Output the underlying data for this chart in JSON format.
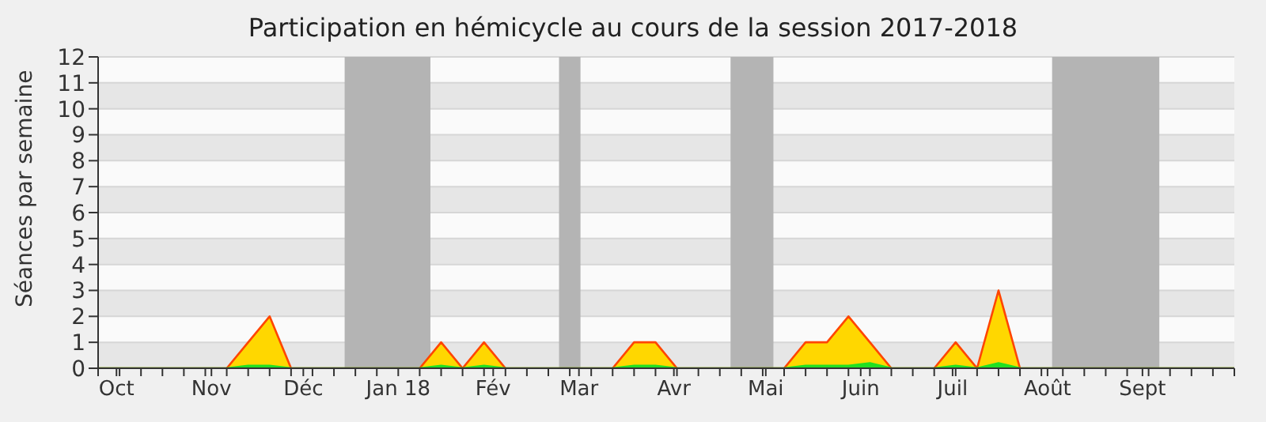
{
  "chart_data": {
    "type": "area",
    "title": "Participation en hémicycle au cours de la session 2017-2018",
    "ylabel": "Séances par semaine",
    "x": [
      "2017-09-25",
      "2017-10-02",
      "2017-10-09",
      "2017-10-16",
      "2017-10-23",
      "2017-10-30",
      "2017-11-06",
      "2017-11-13",
      "2017-11-20",
      "2017-11-27",
      "2017-12-04",
      "2017-12-11",
      "2017-12-18",
      "2017-12-25",
      "2018-01-01",
      "2018-01-08",
      "2018-01-15",
      "2018-01-22",
      "2018-01-29",
      "2018-02-05",
      "2018-02-12",
      "2018-02-19",
      "2018-02-26",
      "2018-03-05",
      "2018-03-12",
      "2018-03-19",
      "2018-03-26",
      "2018-04-02",
      "2018-04-09",
      "2018-04-16",
      "2018-04-23",
      "2018-04-30",
      "2018-05-07",
      "2018-05-14",
      "2018-05-21",
      "2018-05-28",
      "2018-06-04",
      "2018-06-11",
      "2018-06-18",
      "2018-06-25",
      "2018-07-02",
      "2018-07-09",
      "2018-07-16",
      "2018-07-23",
      "2018-07-30",
      "2018-08-06",
      "2018-08-13",
      "2018-08-20",
      "2018-08-27",
      "2018-09-03",
      "2018-09-10",
      "2018-09-17",
      "2018-09-24",
      "2018-10-01"
    ],
    "series": [
      {
        "color": "#ffd700",
        "values": [
          0,
          0,
          0,
          0,
          0,
          0,
          0,
          1,
          2,
          0,
          0,
          0,
          0,
          0,
          0,
          0,
          1,
          0,
          1,
          0,
          0,
          0,
          0,
          0,
          0,
          1,
          1,
          0,
          0,
          0,
          0,
          0,
          0,
          1,
          1,
          2,
          1,
          0,
          0,
          0,
          1,
          0,
          3,
          0,
          0,
          0,
          0,
          0,
          0,
          0,
          0,
          0,
          0,
          0
        ]
      },
      {
        "color": "#22e022",
        "values": [
          0,
          0,
          0,
          0,
          0,
          0,
          0,
          0.1,
          0.1,
          0,
          0,
          0,
          0,
          0,
          0,
          0,
          0.1,
          0,
          0.1,
          0,
          0,
          0,
          0,
          0,
          0,
          0.1,
          0.1,
          0,
          0,
          0,
          0,
          0,
          0,
          0.1,
          0.1,
          0.1,
          0.2,
          0,
          0,
          0,
          0.1,
          0,
          0.2,
          0,
          0,
          0,
          0,
          0,
          0,
          0,
          0,
          0,
          0,
          0
        ]
      }
    ],
    "xlim": [
      "2017-09-25",
      "2018-10-01"
    ],
    "xticks": [
      {
        "value": "2017-09-25",
        "label": null
      },
      {
        "value": "2017-10-01",
        "label": "Oct"
      },
      {
        "value": "2017-10-02",
        "label": null
      },
      {
        "value": "2017-10-09",
        "label": null
      },
      {
        "value": "2017-10-16",
        "label": null
      },
      {
        "value": "2017-10-23",
        "label": null
      },
      {
        "value": "2017-10-30",
        "label": null
      },
      {
        "value": "2017-11-01",
        "label": "Nov"
      },
      {
        "value": "2017-11-06",
        "label": null
      },
      {
        "value": "2017-11-13",
        "label": null
      },
      {
        "value": "2017-11-20",
        "label": null
      },
      {
        "value": "2017-11-27",
        "label": null
      },
      {
        "value": "2017-12-01",
        "label": "Déc"
      },
      {
        "value": "2017-12-04",
        "label": null
      },
      {
        "value": "2017-12-11",
        "label": null
      },
      {
        "value": "2017-12-18",
        "label": null
      },
      {
        "value": "2017-12-25",
        "label": null
      },
      {
        "value": "2018-01-01",
        "label": "Jan 18"
      },
      {
        "value": "2018-01-08",
        "label": null
      },
      {
        "value": "2018-01-15",
        "label": null
      },
      {
        "value": "2018-01-22",
        "label": null
      },
      {
        "value": "2018-01-29",
        "label": null
      },
      {
        "value": "2018-02-01",
        "label": "Fév"
      },
      {
        "value": "2018-02-05",
        "label": null
      },
      {
        "value": "2018-02-12",
        "label": null
      },
      {
        "value": "2018-02-19",
        "label": null
      },
      {
        "value": "2018-02-26",
        "label": null
      },
      {
        "value": "2018-03-01",
        "label": "Mar"
      },
      {
        "value": "2018-03-05",
        "label": null
      },
      {
        "value": "2018-03-12",
        "label": null
      },
      {
        "value": "2018-03-19",
        "label": null
      },
      {
        "value": "2018-03-26",
        "label": null
      },
      {
        "value": "2018-04-01",
        "label": "Avr"
      },
      {
        "value": "2018-04-02",
        "label": null
      },
      {
        "value": "2018-04-09",
        "label": null
      },
      {
        "value": "2018-04-16",
        "label": null
      },
      {
        "value": "2018-04-23",
        "label": null
      },
      {
        "value": "2018-04-30",
        "label": null
      },
      {
        "value": "2018-05-01",
        "label": "Mai"
      },
      {
        "value": "2018-05-07",
        "label": null
      },
      {
        "value": "2018-05-14",
        "label": null
      },
      {
        "value": "2018-05-21",
        "label": null
      },
      {
        "value": "2018-05-28",
        "label": null
      },
      {
        "value": "2018-06-01",
        "label": "Juin"
      },
      {
        "value": "2018-06-04",
        "label": null
      },
      {
        "value": "2018-06-11",
        "label": null
      },
      {
        "value": "2018-06-18",
        "label": null
      },
      {
        "value": "2018-06-25",
        "label": null
      },
      {
        "value": "2018-07-01",
        "label": "Juil"
      },
      {
        "value": "2018-07-02",
        "label": null
      },
      {
        "value": "2018-07-09",
        "label": null
      },
      {
        "value": "2018-07-16",
        "label": null
      },
      {
        "value": "2018-07-23",
        "label": null
      },
      {
        "value": "2018-07-30",
        "label": null
      },
      {
        "value": "2018-08-01",
        "label": "Août"
      },
      {
        "value": "2018-08-06",
        "label": null
      },
      {
        "value": "2018-08-13",
        "label": null
      },
      {
        "value": "2018-08-20",
        "label": null
      },
      {
        "value": "2018-08-27",
        "label": null
      },
      {
        "value": "2018-09-01",
        "label": "Sept"
      },
      {
        "value": "2018-09-03",
        "label": null
      },
      {
        "value": "2018-09-10",
        "label": null
      },
      {
        "value": "2018-09-17",
        "label": null
      },
      {
        "value": "2018-09-24",
        "label": null
      },
      {
        "value": "2018-10-01",
        "label": null
      }
    ],
    "ylim": [
      0,
      12
    ],
    "yticks": [
      0,
      1,
      2,
      3,
      4,
      5,
      6,
      7,
      8,
      9,
      10,
      11,
      12
    ],
    "bands": [
      {
        "axis": "x",
        "from": "2017-12-14T12:00",
        "to": "2018-01-11T12:00",
        "color": "#b4b4b4"
      },
      {
        "axis": "x",
        "from": "2018-02-22T12:00",
        "to": "2018-03-01T12:00",
        "color": "#b4b4b4"
      },
      {
        "axis": "x",
        "from": "2018-04-19T12:00",
        "to": "2018-05-03T12:00",
        "color": "#b4b4b4"
      },
      {
        "axis": "x",
        "from": "2018-08-02T12:00",
        "to": "2018-09-06T12:00",
        "color": "#b4b4b4"
      }
    ],
    "grid": "y",
    "marker": "none",
    "line_style": "solid"
  }
}
